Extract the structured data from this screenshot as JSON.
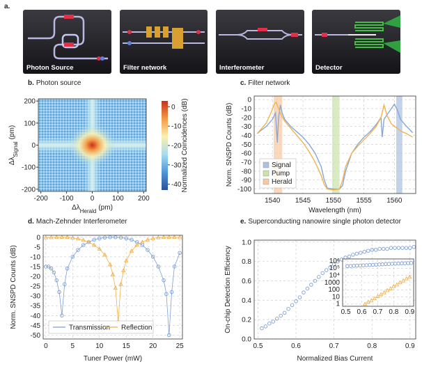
{
  "panel_a": {
    "label": "a.",
    "captions": [
      "Photon Source",
      "Filter network",
      "Interferometer",
      "Detector"
    ]
  },
  "chart_data": [
    {
      "type": "heatmap",
      "label": "b.",
      "title": "Photon source",
      "xlabel": [
        "Δλ",
        "Herald",
        "(pm)"
      ],
      "ylabel": [
        "Δλ",
        "Signal",
        "(pm)"
      ],
      "xlim": [
        -210,
        210
      ],
      "ylim": [
        -210,
        210
      ],
      "xticks": [
        -200,
        -100,
        0,
        100,
        200
      ],
      "yticks": [
        -200,
        -100,
        0,
        100,
        200
      ],
      "colorbar_label": "Normalized Coincidences (dB)",
      "clim": [
        -43,
        3
      ],
      "cticks": [
        0,
        -10,
        -20,
        -30,
        -40
      ]
    },
    {
      "type": "line",
      "label": "c.",
      "title": "Filter network",
      "xlabel": "Wavelength (nm)",
      "ylabel": "Norm. SNSPD Counts (dB)",
      "xlim": [
        1537,
        1563.5
      ],
      "ylim": [
        -105,
        4
      ],
      "xticks": [
        1540,
        1545,
        1550,
        1555,
        1560
      ],
      "yticks": [
        0,
        -10,
        -20,
        -30,
        -40,
        -50,
        -60,
        -70,
        -80,
        -90,
        -100
      ],
      "grid": true,
      "legend": "lower left",
      "bands": [
        {
          "name": "Signal",
          "color": "#a9c1e3",
          "range": [
            1560.3,
            1561.3
          ]
        },
        {
          "name": "Pump",
          "color": "#c9e3a9",
          "range": [
            1549.8,
            1551
          ]
        },
        {
          "name": "Herald",
          "color": "#f5c9a2",
          "range": [
            1540.2,
            1541.6
          ]
        }
      ],
      "series": [
        {
          "color": "#86a7d6",
          "x": [
            1537.5,
            1538,
            1539,
            1540,
            1540.5,
            1540.8,
            1541,
            1541.3,
            1541.6,
            1542,
            1543,
            1544,
            1545,
            1546,
            1547,
            1548,
            1548.5,
            1549,
            1550,
            1551,
            1551.5,
            1552,
            1553,
            1554,
            1555,
            1556,
            1557,
            1557.8,
            1558,
            1558.3,
            1559,
            1559.5,
            1560,
            1560.5,
            1561,
            1562,
            1563
          ],
          "values": [
            -38,
            -35,
            -30,
            -22,
            -15,
            -48,
            -20,
            -6,
            -15,
            -22,
            -30,
            -36,
            -42,
            -50,
            -60,
            -75,
            -90,
            -99,
            -100,
            -100,
            -96,
            -80,
            -60,
            -50,
            -42,
            -36,
            -28,
            -20,
            -42,
            -22,
            -15,
            -10,
            -5,
            -12,
            -22,
            -30,
            -37
          ]
        },
        {
          "color": "#f2b34f",
          "x": [
            1537.5,
            1538,
            1539,
            1539.8,
            1540.3,
            1540.6,
            1541,
            1541.5,
            1542,
            1543,
            1544,
            1545,
            1546,
            1547,
            1548,
            1548.5,
            1549,
            1550,
            1551,
            1551.5,
            1552,
            1553,
            1554,
            1555,
            1556,
            1557,
            1557.8,
            1558.3,
            1558.8,
            1559.5,
            1560,
            1560.5,
            1561,
            1562,
            1563
          ],
          "values": [
            -38,
            -34,
            -26,
            -14,
            -5,
            -3,
            -10,
            -18,
            -24,
            -32,
            -40,
            -48,
            -58,
            -70,
            -85,
            -95,
            -100,
            -101,
            -100,
            -90,
            -75,
            -60,
            -52,
            -45,
            -38,
            -30,
            -20,
            -6,
            -18,
            -27,
            -30,
            -32,
            -35,
            -38,
            -42
          ]
        }
      ]
    },
    {
      "type": "line",
      "label": "d.",
      "title": "Mach-Zehnder Interferometer",
      "xlabel": "Tuner Power (mW)",
      "ylabel": "Norm. SNSPD Counts (dB)",
      "xlim": [
        -0.5,
        25.5
      ],
      "ylim": [
        -52,
        1
      ],
      "xticks": [
        0,
        5,
        10,
        15,
        20,
        25
      ],
      "yticks": [
        0,
        -5,
        -10,
        -15,
        -20,
        -25,
        -30,
        -35,
        -40,
        -45,
        -50
      ],
      "grid": true,
      "legend": "lower left",
      "series": [
        {
          "name": "Transmission",
          "color": "#7d9fd3",
          "marker": "circle",
          "x": [
            0,
            0.5,
            1,
            1.5,
            2,
            2.5,
            3,
            3.5,
            4,
            5,
            6,
            7,
            8,
            9,
            10,
            11,
            12,
            13,
            14,
            15,
            16,
            17,
            18,
            19,
            20,
            21,
            22,
            22.5,
            23,
            23.5,
            24,
            25
          ],
          "values": [
            -15,
            -15,
            -16,
            -18,
            -22,
            -28,
            -40,
            -24,
            -16,
            -10,
            -6.5,
            -4,
            -2.5,
            -1.3,
            -0.6,
            -0.2,
            0,
            0,
            -0.2,
            -0.6,
            -1.3,
            -2.5,
            -4,
            -6.5,
            -10,
            -15,
            -22,
            -29,
            -50,
            -28,
            -15,
            -8
          ]
        },
        {
          "name": "Reflection",
          "color": "#f0b04a",
          "marker": "triangle",
          "x": [
            0,
            1,
            2,
            3,
            4,
            5,
            6,
            7,
            8,
            9,
            10,
            11,
            12,
            12.5,
            13,
            13.5,
            14,
            14.5,
            15,
            16,
            17,
            18,
            19,
            20,
            21,
            22,
            23,
            24,
            25
          ],
          "values": [
            -0.2,
            -0.1,
            0,
            0,
            0,
            -0.3,
            -0.8,
            -1.5,
            -2.5,
            -4,
            -6,
            -9,
            -14,
            -19,
            -26,
            -43,
            -24,
            -17,
            -12,
            -7,
            -4,
            -2.5,
            -1.3,
            -0.6,
            -0.2,
            0,
            0,
            0,
            -0.1
          ]
        }
      ]
    },
    {
      "type": "scatter",
      "label": "e.",
      "title": "Superconducting nanowire single photon detector",
      "xlabel": "Normalized Bias Current",
      "ylabel": "On-chip Detection Efficiency",
      "xlim": [
        0.49,
        0.915
      ],
      "ylim": [
        0,
        1.02
      ],
      "xticks": [
        0.5,
        0.6,
        0.7,
        0.8,
        0.9
      ],
      "yticks": [
        {
          "value": 0,
          "label": "0.0"
        },
        0.2,
        0.4,
        0.6,
        0.8,
        {
          "value": 1,
          "label": "1.0"
        }
      ],
      "grid": true,
      "series": [
        {
          "color": "#7d9fd3",
          "marker": "circle",
          "x": [
            0.51,
            0.52,
            0.53,
            0.54,
            0.55,
            0.56,
            0.57,
            0.58,
            0.59,
            0.6,
            0.61,
            0.62,
            0.63,
            0.64,
            0.65,
            0.66,
            0.67,
            0.68,
            0.69,
            0.7,
            0.71,
            0.72,
            0.73,
            0.74,
            0.75,
            0.76,
            0.77,
            0.78,
            0.79,
            0.8,
            0.81,
            0.82,
            0.83,
            0.84,
            0.85,
            0.86,
            0.87,
            0.88,
            0.89,
            0.9,
            0.91
          ],
          "values": [
            0.11,
            0.13,
            0.16,
            0.18,
            0.21,
            0.24,
            0.27,
            0.31,
            0.35,
            0.39,
            0.43,
            0.48,
            0.52,
            0.56,
            0.6,
            0.64,
            0.68,
            0.71,
            0.74,
            0.77,
            0.8,
            0.82,
            0.84,
            0.85,
            0.87,
            0.88,
            0.89,
            0.9,
            0.91,
            0.92,
            0.92,
            0.93,
            0.93,
            0.93,
            0.94,
            0.94,
            0.94,
            0.94,
            0.94,
            0.94,
            0.95
          ]
        }
      ]
    },
    {
      "type": "scatter",
      "yscale": "log",
      "xlim": [
        0.48,
        0.925
      ],
      "ylim": [
        0.5,
        2000000
      ],
      "xticks": [
        0.5,
        0.6,
        0.7,
        0.8,
        0.9
      ],
      "yticks": [
        1,
        10,
        100,
        1000,
        {
          "value": 10000,
          "label": "10⁴"
        },
        {
          "value": 100000,
          "label": "10⁵"
        },
        {
          "value": 1000000,
          "label": "10⁶"
        }
      ],
      "grid": true,
      "series": [
        {
          "color": "#7d9fd3",
          "marker": "circle",
          "x": [
            0.51,
            0.53,
            0.55,
            0.57,
            0.59,
            0.61,
            0.63,
            0.65,
            0.67,
            0.69,
            0.71,
            0.73,
            0.75,
            0.77,
            0.79,
            0.81,
            0.83,
            0.85,
            0.87,
            0.89,
            0.91
          ],
          "values": [
            200000,
            210000,
            220000,
            230000,
            240000,
            255000,
            270000,
            285000,
            300000,
            320000,
            340000,
            360000,
            380000,
            400000,
            420000,
            440000,
            460000,
            480000,
            500000,
            520000,
            540000
          ]
        },
        {
          "color": "#f0b04a",
          "marker": "triangle",
          "x": [
            0.62,
            0.64,
            0.66,
            0.68,
            0.7,
            0.72,
            0.74,
            0.76,
            0.78,
            0.8,
            0.82,
            0.84,
            0.86,
            0.88,
            0.9
          ],
          "values": [
            1,
            2,
            3,
            6,
            12,
            22,
            40,
            80,
            140,
            300,
            500,
            1000,
            1800,
            3500,
            6000
          ]
        }
      ]
    }
  ]
}
